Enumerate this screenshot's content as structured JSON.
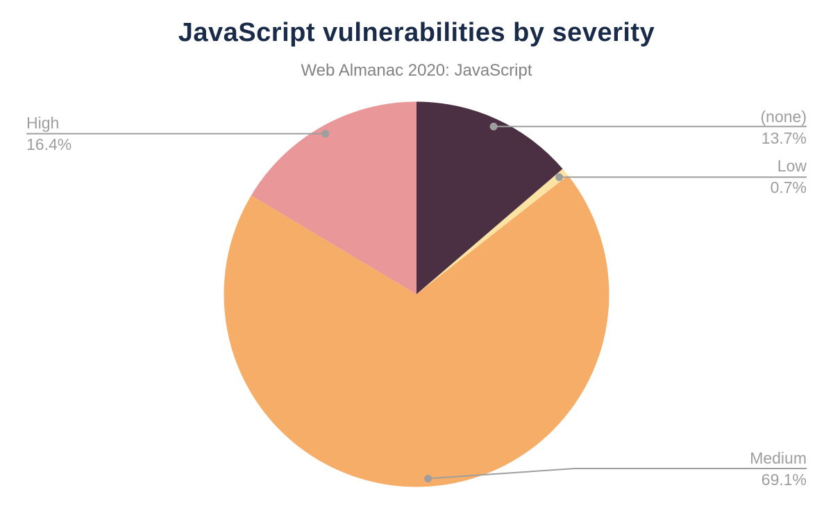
{
  "chart_data": {
    "type": "pie",
    "title": "JavaScript vulnerabilities by severity",
    "subtitle": "Web Almanac 2020: JavaScript",
    "start_angle_deg": 0,
    "direction": "clockwise",
    "legend_position": "none",
    "labels_style": "outside-callout",
    "leader_line_color": "#9e9e9e",
    "label_text_color": "#9e9e9e",
    "title_color": "#1a2b49",
    "subtitle_color": "#828282",
    "background_color": "#ffffff",
    "slices": [
      {
        "label": "(none)",
        "value": 13.7,
        "display": "13.7%",
        "color": "#4a3042"
      },
      {
        "label": "Low",
        "value": 0.7,
        "display": "0.7%",
        "color": "#fbe3a3"
      },
      {
        "label": "Medium",
        "value": 69.1,
        "display": "69.1%",
        "color": "#f6ad67"
      },
      {
        "label": "High",
        "value": 16.4,
        "display": "16.4%",
        "color": "#ea979a"
      }
    ]
  }
}
